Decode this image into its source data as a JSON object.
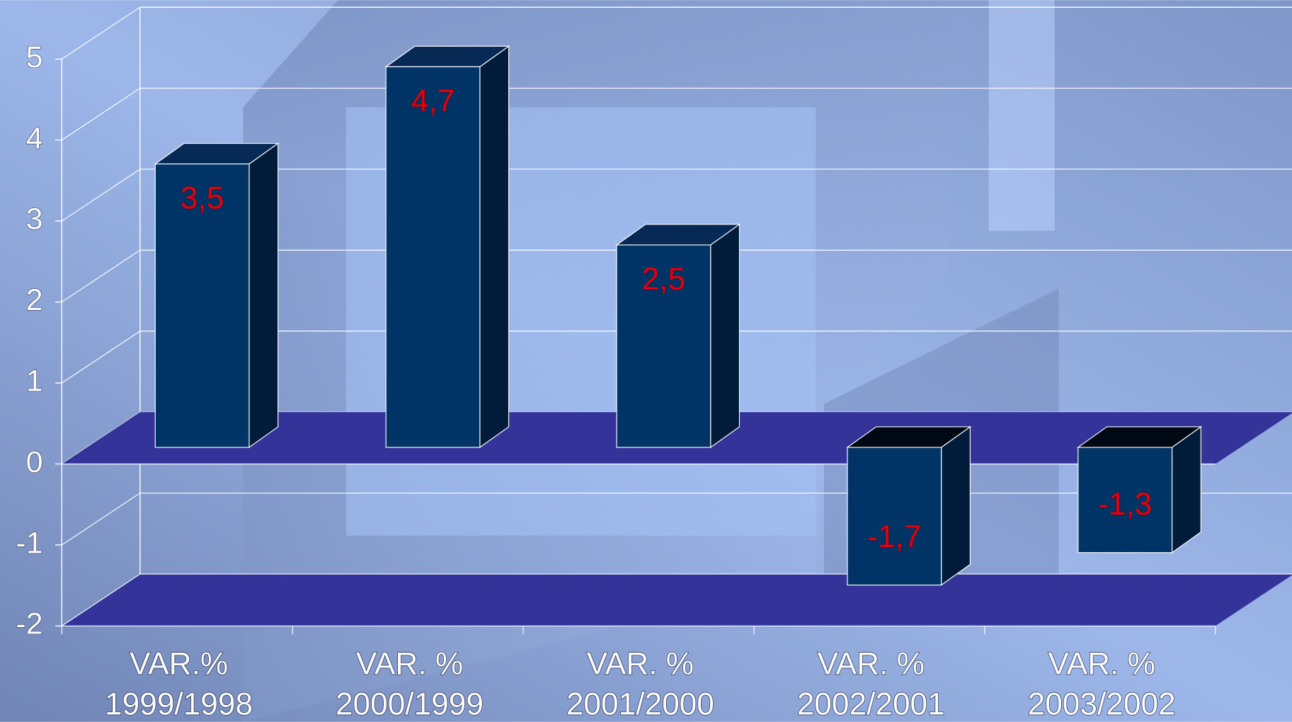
{
  "chart_data": {
    "type": "bar3d",
    "categories": [
      [
        "VAR.%",
        "1999/1998"
      ],
      [
        "VAR. %",
        "2000/1999"
      ],
      [
        "VAR. %",
        "2001/2000"
      ],
      [
        "VAR. %",
        "2002/2001"
      ],
      [
        "VAR. %",
        "2003/2002"
      ]
    ],
    "values": [
      3.5,
      4.7,
      2.5,
      -1.7,
      -1.3
    ],
    "value_labels": [
      "3,5",
      "4,7",
      "2,5",
      "-1,7",
      "-1,3"
    ],
    "color": "#003366",
    "ylim": [
      -2,
      5
    ],
    "yticks": [
      -2,
      -1,
      0,
      1,
      2,
      3,
      4,
      5
    ],
    "grid": true
  }
}
